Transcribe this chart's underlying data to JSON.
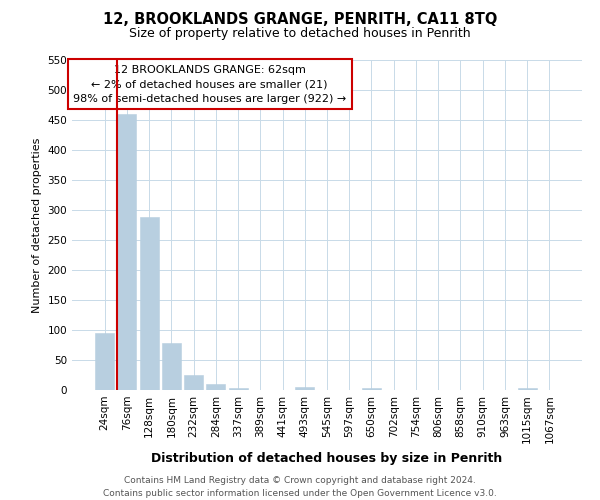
{
  "title": "12, BROOKLANDS GRANGE, PENRITH, CA11 8TQ",
  "subtitle": "Size of property relative to detached houses in Penrith",
  "xlabel": "Distribution of detached houses by size in Penrith",
  "ylabel": "Number of detached properties",
  "bar_labels": [
    "24sqm",
    "76sqm",
    "128sqm",
    "180sqm",
    "232sqm",
    "284sqm",
    "337sqm",
    "389sqm",
    "441sqm",
    "493sqm",
    "545sqm",
    "597sqm",
    "650sqm",
    "702sqm",
    "754sqm",
    "806sqm",
    "858sqm",
    "910sqm",
    "963sqm",
    "1015sqm",
    "1067sqm"
  ],
  "bar_values": [
    95,
    460,
    288,
    78,
    25,
    10,
    3,
    0,
    0,
    5,
    0,
    0,
    4,
    0,
    0,
    0,
    0,
    0,
    0,
    3,
    0
  ],
  "bar_color": "#b8cfe0",
  "marker_line_color": "#cc0000",
  "ylim_max": 550,
  "yticks": [
    0,
    50,
    100,
    150,
    200,
    250,
    300,
    350,
    400,
    450,
    500,
    550
  ],
  "annotation_title": "12 BROOKLANDS GRANGE: 62sqm",
  "annotation_line1": "← 2% of detached houses are smaller (21)",
  "annotation_line2": "98% of semi-detached houses are larger (922) →",
  "annotation_box_edgecolor": "#cc0000",
  "footer_line1": "Contains HM Land Registry data © Crown copyright and database right 2024.",
  "footer_line2": "Contains public sector information licensed under the Open Government Licence v3.0.",
  "background_color": "#ffffff",
  "grid_color": "#c8dae8",
  "title_fontsize": 10.5,
  "subtitle_fontsize": 9,
  "ylabel_fontsize": 8,
  "xlabel_fontsize": 9,
  "tick_fontsize": 7.5,
  "annotation_fontsize": 8,
  "footer_fontsize": 6.5
}
